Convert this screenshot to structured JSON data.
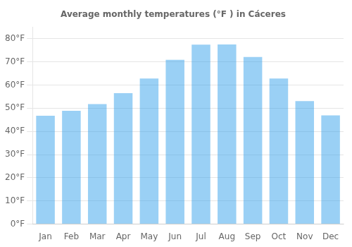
{
  "chart_data": {
    "type": "bar",
    "title": "Average monthly temperatures (°F ) in Cáceres",
    "categories": [
      "Jan",
      "Feb",
      "Mar",
      "Apr",
      "May",
      "Jun",
      "Jul",
      "Aug",
      "Sep",
      "Oct",
      "Nov",
      "Dec"
    ],
    "values": [
      46.8,
      48.9,
      51.8,
      56.5,
      62.8,
      70.9,
      77.4,
      77.5,
      72.1,
      62.8,
      53.1,
      46.9
    ],
    "ylim": [
      0,
      85
    ],
    "yticks": [
      {
        "value": 0,
        "label": "0°F"
      },
      {
        "value": 10,
        "label": "10°F"
      },
      {
        "value": 20,
        "label": "20°F"
      },
      {
        "value": 30,
        "label": "30°F"
      },
      {
        "value": 40,
        "label": "40°F"
      },
      {
        "value": 50,
        "label": "50°F"
      },
      {
        "value": 60,
        "label": "60°F"
      },
      {
        "value": 70,
        "label": "70°F"
      },
      {
        "value": 80,
        "label": "80°F"
      }
    ],
    "grid": true
  }
}
